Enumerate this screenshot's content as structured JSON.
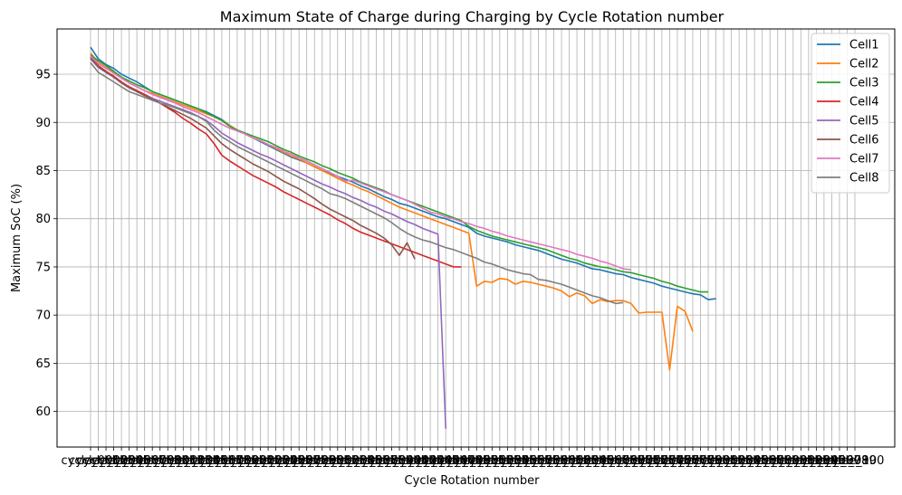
{
  "chart_data": {
    "type": "line",
    "title": "Maximum State of Charge during Charging by Cycle Rotation number",
    "xlabel": "Cycle Rotation number",
    "ylabel": "Maximum SoC (%)",
    "ylim": [
      56.3,
      99.7
    ],
    "yticks": [
      60,
      65,
      70,
      75,
      80,
      85,
      90,
      95
    ],
    "grid": true,
    "legend_position": "top-right",
    "x_count": 100,
    "x_tick_labels_note": "cycle_001 ... cycle_100 (overlapping, illegible)",
    "colors": {
      "Cell1": "#1f77b4",
      "Cell2": "#ff7f0e",
      "Cell3": "#2ca02c",
      "Cell4": "#d62728",
      "Cell5": "#9467bd",
      "Cell6": "#8c564b",
      "Cell7": "#e377c2",
      "Cell8": "#7f7f7f"
    },
    "series": [
      {
        "name": "Cell1",
        "values": [
          97.8,
          96.6,
          96.0,
          95.6,
          95.0,
          94.6,
          94.2,
          93.7,
          93.2,
          92.9,
          92.6,
          92.3,
          92.0,
          91.7,
          91.4,
          91.1,
          90.7,
          90.3,
          89.7,
          89.2,
          88.8,
          88.4,
          88.0,
          87.6,
          87.2,
          86.8,
          86.4,
          86.1,
          85.8,
          85.4,
          85.0,
          84.7,
          84.4,
          84.1,
          83.8,
          83.4,
          83.1,
          82.7,
          82.3,
          82.0,
          81.6,
          81.4,
          81.1,
          80.8,
          80.5,
          80.2,
          80.0,
          79.7,
          79.4,
          79.1,
          78.5,
          78.2,
          78.0,
          77.8,
          77.6,
          77.3,
          77.1,
          76.9,
          76.7,
          76.4,
          76.1,
          75.8,
          75.6,
          75.4,
          75.1,
          74.8,
          74.7,
          74.5,
          74.3,
          74.2,
          73.9,
          73.7,
          73.5,
          73.3,
          73.0,
          72.8,
          72.6,
          72.4,
          72.2,
          72.1,
          71.6,
          71.7
        ]
      },
      {
        "name": "Cell2",
        "values": [
          97.2,
          96.2,
          95.7,
          95.2,
          94.6,
          94.1,
          93.7,
          93.3,
          93.0,
          92.7,
          92.4,
          92.1,
          91.8,
          91.5,
          91.2,
          90.9,
          90.6,
          90.2,
          89.7,
          89.2,
          88.8,
          88.4,
          88.1,
          87.7,
          87.3,
          86.9,
          86.5,
          86.2,
          85.8,
          85.4,
          85.0,
          84.6,
          84.2,
          83.8,
          83.5,
          83.1,
          82.8,
          82.4,
          82.0,
          81.6,
          81.2,
          80.9,
          80.6,
          80.3,
          80.0,
          79.7,
          79.4,
          79.1,
          78.8,
          78.5,
          73.0,
          73.5,
          73.4,
          73.8,
          73.7,
          73.2,
          73.5,
          73.4,
          73.2,
          73.0,
          72.8,
          72.5,
          71.9,
          72.3,
          72.0,
          71.2,
          71.6,
          71.4,
          71.5,
          71.5,
          71.2,
          70.2,
          70.3,
          70.3,
          70.3,
          64.3,
          70.9,
          70.4,
          68.3
        ]
      },
      {
        "name": "Cell3",
        "values": [
          97.0,
          96.4,
          95.9,
          95.3,
          94.7,
          94.3,
          93.9,
          93.6,
          93.2,
          92.9,
          92.6,
          92.3,
          92.0,
          91.7,
          91.4,
          91.0,
          90.6,
          90.2,
          89.6,
          89.2,
          88.9,
          88.6,
          88.3,
          88.0,
          87.6,
          87.2,
          86.9,
          86.5,
          86.2,
          85.9,
          85.5,
          85.2,
          84.8,
          84.5,
          84.2,
          83.8,
          83.5,
          83.2,
          82.9,
          82.5,
          82.2,
          81.9,
          81.6,
          81.3,
          81.0,
          80.7,
          80.4,
          80.1,
          79.8,
          79.2,
          78.8,
          78.5,
          78.2,
          78.0,
          77.8,
          77.6,
          77.4,
          77.2,
          77.0,
          76.8,
          76.5,
          76.2,
          75.9,
          75.7,
          75.4,
          75.2,
          75.0,
          74.9,
          74.7,
          74.5,
          74.4,
          74.2,
          74.0,
          73.8,
          73.5,
          73.3,
          73.0,
          72.8,
          72.6,
          72.4,
          72.4
        ]
      },
      {
        "name": "Cell4",
        "values": [
          96.8,
          95.9,
          95.3,
          94.8,
          94.2,
          93.7,
          93.3,
          92.9,
          92.5,
          92.0,
          91.5,
          91.0,
          90.4,
          89.9,
          89.3,
          88.8,
          87.8,
          86.6,
          86.0,
          85.5,
          85.0,
          84.5,
          84.1,
          83.7,
          83.3,
          82.8,
          82.4,
          82.0,
          81.6,
          81.2,
          80.8,
          80.4,
          79.9,
          79.5,
          79.0,
          78.6,
          78.3,
          78.0,
          77.7,
          77.4,
          77.1,
          76.8,
          76.5,
          76.2,
          75.9,
          75.6,
          75.3,
          75.0,
          75.0
        ]
      },
      {
        "name": "Cell5",
        "values": [
          96.6,
          95.7,
          95.2,
          94.7,
          94.1,
          93.6,
          93.2,
          92.8,
          92.5,
          92.2,
          91.9,
          91.6,
          91.3,
          91.0,
          90.6,
          90.2,
          89.6,
          88.9,
          88.4,
          87.9,
          87.5,
          87.1,
          86.7,
          86.4,
          86.0,
          85.6,
          85.2,
          84.8,
          84.4,
          84.0,
          83.6,
          83.3,
          82.9,
          82.6,
          82.2,
          81.9,
          81.5,
          81.2,
          80.8,
          80.5,
          80.1,
          79.7,
          79.4,
          79.0,
          78.7,
          78.4,
          58.2
        ]
      },
      {
        "name": "Cell6",
        "values": [
          96.7,
          95.8,
          95.2,
          94.7,
          94.1,
          93.6,
          93.2,
          92.8,
          92.4,
          92.0,
          91.6,
          91.2,
          90.8,
          90.4,
          89.9,
          89.4,
          88.6,
          87.8,
          87.2,
          86.7,
          86.2,
          85.7,
          85.3,
          84.9,
          84.4,
          83.9,
          83.5,
          83.1,
          82.6,
          82.1,
          81.5,
          81.0,
          80.6,
          80.2,
          79.8,
          79.3,
          78.9,
          78.5,
          78.0,
          77.3,
          76.2,
          77.5,
          75.8
        ]
      },
      {
        "name": "Cell7",
        "values": [
          96.9,
          96.1,
          95.6,
          95.1,
          94.6,
          94.1,
          93.7,
          93.3,
          92.9,
          92.6,
          92.3,
          92.0,
          91.6,
          91.3,
          91.0,
          90.6,
          90.2,
          89.8,
          89.4,
          89.1,
          88.8,
          88.4,
          88.1,
          87.7,
          87.4,
          87.0,
          86.7,
          86.3,
          86.0,
          85.6,
          85.2,
          84.8,
          84.4,
          83.9,
          84.0,
          83.7,
          83.4,
          83.1,
          82.8,
          82.5,
          82.2,
          81.9,
          81.5,
          81.1,
          80.7,
          80.5,
          80.2,
          80.0,
          79.7,
          79.5,
          79.2,
          79.0,
          78.7,
          78.5,
          78.2,
          78.0,
          77.8,
          77.6,
          77.4,
          77.2,
          77.0,
          76.8,
          76.6,
          76.3,
          76.1,
          75.9,
          75.6,
          75.4,
          75.1,
          74.8,
          74.7
        ]
      },
      {
        "name": "Cell8",
        "values": [
          96.2,
          95.2,
          94.7,
          94.2,
          93.7,
          93.2,
          92.9,
          92.6,
          92.3,
          92.0,
          91.8,
          91.5,
          91.2,
          90.9,
          90.6,
          90.1,
          89.2,
          88.5,
          88.0,
          87.5,
          87.1,
          86.7,
          86.3,
          85.9,
          85.5,
          85.1,
          84.7,
          84.3,
          83.9,
          83.5,
          83.1,
          82.6,
          82.4,
          82.1,
          81.7,
          81.3,
          80.9,
          80.5,
          80.1,
          79.6,
          79.0,
          78.5,
          78.1,
          77.8,
          77.6,
          77.3,
          77.0,
          76.8,
          76.5,
          76.2,
          75.9,
          75.5,
          75.3,
          75.0,
          74.7,
          74.5,
          74.3,
          74.2,
          73.7,
          73.6,
          73.4,
          73.2,
          72.9,
          72.6,
          72.3,
          72.0,
          71.8,
          71.5,
          71.2,
          71.3
        ]
      }
    ]
  }
}
